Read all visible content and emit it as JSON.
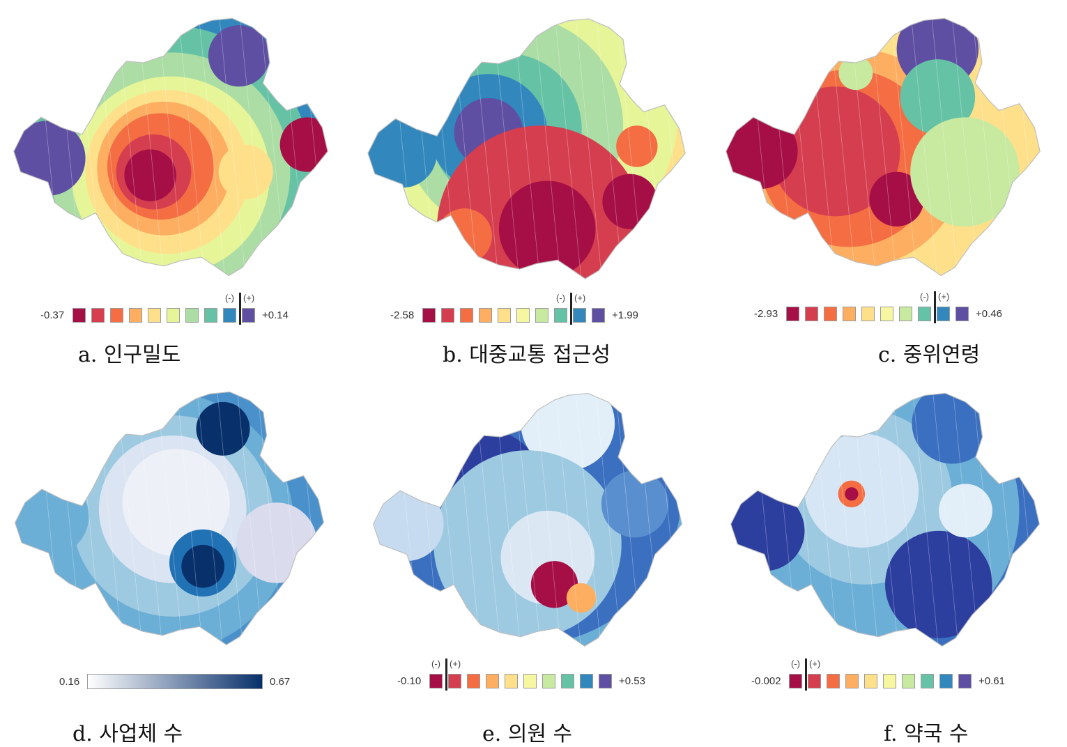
{
  "panels": [
    {
      "id": "a",
      "caption": "a. 인구밀도",
      "legend": {
        "type": "diverging",
        "min": "-0.37",
        "max": "+0.14",
        "neg": "(-)",
        "pos": "(+)",
        "zero_after_swatch": 9,
        "colors": [
          "#a50f46",
          "#d53e4f",
          "#f46d43",
          "#fdae61",
          "#fee08b",
          "#e6f598",
          "#abdda4",
          "#66c2a5",
          "#3288bd",
          "#5e4fa2"
        ]
      }
    },
    {
      "id": "b",
      "caption": "b. 대중교통 접근성",
      "legend": {
        "type": "diverging",
        "min": "-2.58",
        "max": "+1.99",
        "neg": "(-)",
        "pos": "(+)",
        "zero_after_swatch": 8,
        "colors": [
          "#a50f46",
          "#d53e4f",
          "#f46d43",
          "#fdae61",
          "#fee08b",
          "#f6f7a0",
          "#c7e9a0",
          "#66c2a5",
          "#3288bd",
          "#5e4fa2"
        ]
      }
    },
    {
      "id": "c",
      "caption": "c. 중위연령",
      "legend": {
        "type": "diverging",
        "min": "-2.93",
        "max": "+0.46",
        "neg": "(-)",
        "pos": "(+)",
        "zero_after_swatch": 8,
        "colors": [
          "#a50f46",
          "#d53e4f",
          "#f46d43",
          "#fdae61",
          "#fee08b",
          "#f6f7a0",
          "#c7e9a0",
          "#66c2a5",
          "#3288bd",
          "#5e4fa2"
        ]
      }
    },
    {
      "id": "d",
      "caption": "d. 사업체 수",
      "legend": {
        "type": "gradient",
        "min": "0.16",
        "max": "0.67",
        "colors": [
          "#ffffff",
          "#08306b"
        ]
      }
    },
    {
      "id": "e",
      "caption": "e. 의원 수",
      "legend": {
        "type": "diverging",
        "min": "-0.10",
        "max": "+0.53",
        "neg": "(-)",
        "pos": "(+)",
        "zero_after_swatch": 1,
        "colors": [
          "#a50f46",
          "#d53e4f",
          "#f46d43",
          "#fdae61",
          "#fee08b",
          "#f6f7a0",
          "#c7e9a0",
          "#66c2a5",
          "#3288bd",
          "#5e4fa2"
        ]
      }
    },
    {
      "id": "f",
      "caption": "f. 약국 수",
      "legend": {
        "type": "diverging",
        "min": "-0.002",
        "max": "+0.61",
        "neg": "(-)",
        "pos": "(+)",
        "zero_after_swatch": 1,
        "colors": [
          "#a50f46",
          "#d53e4f",
          "#f46d43",
          "#fdae61",
          "#fee08b",
          "#f6f7a0",
          "#c7e9a0",
          "#66c2a5",
          "#3288bd",
          "#5e4fa2"
        ]
      }
    }
  ]
}
